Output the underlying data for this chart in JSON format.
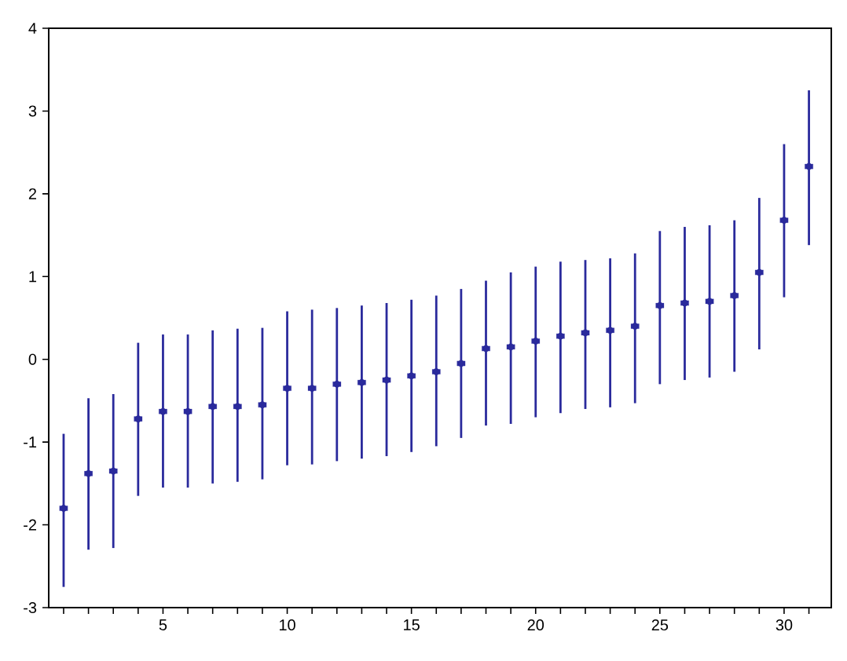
{
  "chart_data": {
    "type": "scatter",
    "x": [
      1,
      2,
      3,
      4,
      5,
      6,
      7,
      8,
      9,
      10,
      11,
      12,
      13,
      14,
      15,
      16,
      17,
      18,
      19,
      20,
      21,
      22,
      23,
      24,
      25,
      26,
      27,
      28,
      29,
      30,
      31
    ],
    "series": [
      {
        "color": "#2a2a9c",
        "values": [
          -1.8,
          -1.38,
          -1.35,
          -0.72,
          -0.63,
          -0.63,
          -0.57,
          -0.57,
          -0.55,
          -0.35,
          -0.35,
          -0.3,
          -0.28,
          -0.25,
          -0.2,
          -0.15,
          -0.05,
          0.13,
          0.15,
          0.22,
          0.28,
          0.32,
          0.35,
          0.4,
          0.65,
          0.68,
          0.7,
          0.77,
          1.05,
          1.68,
          2.33
        ],
        "errors": [
          [
            -2.75,
            -0.9
          ],
          [
            -2.3,
            -0.47
          ],
          [
            -2.28,
            -0.42
          ],
          [
            -1.65,
            0.2
          ],
          [
            -1.55,
            0.3
          ],
          [
            -1.55,
            0.3
          ],
          [
            -1.5,
            0.35
          ],
          [
            -1.48,
            0.37
          ],
          [
            -1.45,
            0.38
          ],
          [
            -1.28,
            0.58
          ],
          [
            -1.27,
            0.6
          ],
          [
            -1.23,
            0.62
          ],
          [
            -1.2,
            0.65
          ],
          [
            -1.17,
            0.68
          ],
          [
            -1.12,
            0.72
          ],
          [
            -1.05,
            0.77
          ],
          [
            -0.95,
            0.85
          ],
          [
            -0.8,
            0.95
          ],
          [
            -0.78,
            1.05
          ],
          [
            -0.7,
            1.12
          ],
          [
            -0.65,
            1.18
          ],
          [
            -0.6,
            1.2
          ],
          [
            -0.58,
            1.22
          ],
          [
            -0.53,
            1.28
          ],
          [
            -0.3,
            1.55
          ],
          [
            -0.25,
            1.6
          ],
          [
            -0.22,
            1.62
          ],
          [
            -0.15,
            1.68
          ],
          [
            0.12,
            1.95
          ],
          [
            0.75,
            2.6
          ],
          [
            1.38,
            3.25
          ]
        ]
      }
    ],
    "marker": "square",
    "xlim": [
      0.4,
      31.9
    ],
    "xticks": [
      {
        "value": 1,
        "label": null
      },
      {
        "value": 2,
        "label": null
      },
      {
        "value": 3,
        "label": null
      },
      {
        "value": 4,
        "label": null
      },
      5,
      {
        "value": 6,
        "label": null
      },
      {
        "value": 7,
        "label": null
      },
      {
        "value": 8,
        "label": null
      },
      {
        "value": 9,
        "label": null
      },
      10,
      {
        "value": 11,
        "label": null
      },
      {
        "value": 12,
        "label": null
      },
      {
        "value": 13,
        "label": null
      },
      {
        "value": 14,
        "label": null
      },
      15,
      {
        "value": 16,
        "label": null
      },
      {
        "value": 17,
        "label": null
      },
      {
        "value": 18,
        "label": null
      },
      {
        "value": 19,
        "label": null
      },
      20,
      {
        "value": 21,
        "label": null
      },
      {
        "value": 22,
        "label": null
      },
      {
        "value": 23,
        "label": null
      },
      {
        "value": 24,
        "label": null
      },
      25,
      {
        "value": 26,
        "label": null
      },
      {
        "value": 27,
        "label": null
      },
      {
        "value": 28,
        "label": null
      },
      {
        "value": 29,
        "label": null
      },
      30,
      {
        "value": 31,
        "label": null
      }
    ],
    "ylim": [
      -3,
      4
    ],
    "yticks": [
      -3,
      -2,
      -1,
      0,
      1,
      2,
      3,
      4
    ]
  }
}
